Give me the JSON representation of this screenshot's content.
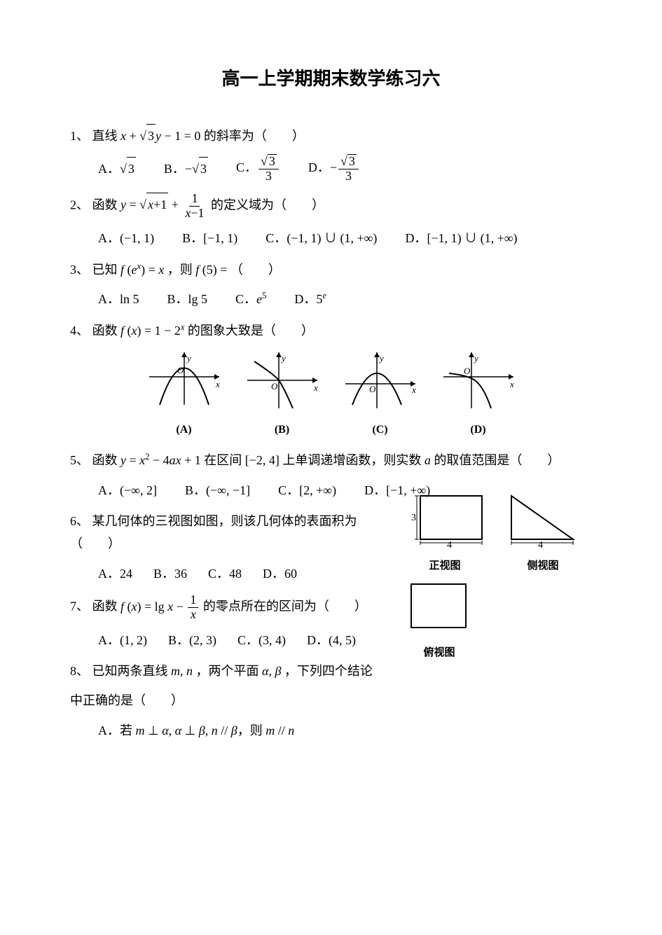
{
  "title": "高一上学期期末数学练习六",
  "colors": {
    "text": "#000000",
    "bg": "#ffffff",
    "line": "#000000"
  },
  "fonts": {
    "body": "SimSun, 宋体, serif",
    "math": "Times New Roman, serif",
    "size_body": 18,
    "size_title": 26
  },
  "q1": {
    "num": "1、",
    "text_prefix": "直线",
    "expr_html": "<span class='math-i'>x</span> + <span class='sqrt'><span class='sqrt-arg'>3</span></span><span class='math-i'>y</span> − 1 = 0",
    "text_suffix": " 的斜率为（　　）",
    "A": "<span class='sqrt'><span class='sqrt-arg'>3</span></span>",
    "B": "−<span class='sqrt'><span class='sqrt-arg'>3</span></span>",
    "C": "<span class='frac'><span class='num'><span class='sqrt'><span class='sqrt-arg'>3</span></span></span><span class='den'>3</span></span>",
    "D": "−<span class='frac'><span class='num'><span class='sqrt'><span class='sqrt-arg'>3</span></span></span><span class='den'>3</span></span>"
  },
  "q2": {
    "num": "2、",
    "text_prefix": "函数 ",
    "expr_html": "<span class='math-i'>y</span> = <span class='sqrt'><span class='sqrt-arg'><span class='math-i'>x</span>+1</span></span> + <span class='frac'><span class='num'>1</span><span class='den'><span class='math-i'>x</span>−1</span></span>",
    "text_suffix": " 的定义域为（　　）",
    "A": "(−1, 1)",
    "B": "[−1, 1)",
    "C": "(−1, 1) ∪ (1, +∞)",
    "D": "[−1, 1) ∪ (1, +∞)"
  },
  "q3": {
    "num": "3、",
    "text_prefix": "已知 ",
    "expr_html": "<span class='math-i'>f</span> (<span class='math-i'>e</span><sup><span class='math-i'>x</span></sup>) = <span class='math-i'>x</span>",
    "text_mid": "，则 ",
    "expr2_html": "<span class='math-i'>f</span> (5) =",
    "text_suffix": "（　　）",
    "A": "ln 5",
    "B": "lg 5",
    "C": "<span class='math-i'>e</span><sup>5</sup>",
    "D": "5<sup><span class='math-i'>e</span></sup>"
  },
  "q4": {
    "num": "4、",
    "text_prefix": "函数 ",
    "expr_html": "<span class='math-i'>f</span> (<span class='math-i'>x</span>) = 1 − 2<sup><span class='math-i'>x</span></sup>",
    "text_suffix": " 的图象大致是（　　）",
    "graph_size": {
      "w": 120,
      "h": 90
    },
    "labels": [
      "(A)",
      "(B)",
      "(C)",
      "(D)"
    ],
    "axis_labels": {
      "x": "x",
      "y": "y",
      "o": "O"
    },
    "curves": {
      "A": "parabola_down_through_origin",
      "B": "decreasing_through_origin",
      "C": "parabola_down_max_above",
      "D": "concave_down_decreasing"
    }
  },
  "q5": {
    "num": "5、",
    "text_prefix": "函数 ",
    "expr_html": "<span class='math-i'>y</span> = <span class='math-i'>x</span><sup>2</sup> − 4<span class='math-i'>ax</span> + 1",
    "text_mid": " 在区间 ",
    "interval": "[−2, 4]",
    "text_suffix": " 上单调递增函数，则实数 <span class='math-i'>a</span> 的取值范围是（　　）",
    "A": "(−∞, 2]",
    "B": "(−∞, −1]",
    "C": "[2, +∞)",
    "D": "[−1, +∞)"
  },
  "q6": {
    "num": "6、",
    "text": "某几何体的三视图如图，则该几何体的表面积为（　　）",
    "A": "24",
    "B": "36",
    "C": "48",
    "D": "60",
    "views": {
      "front": {
        "w": 4,
        "h": 3,
        "label": "正视图"
      },
      "side": {
        "w": 4,
        "h": 3,
        "label": "侧视图",
        "shape": "right_triangle"
      },
      "top": {
        "label": "俯视图",
        "shape": "square"
      }
    }
  },
  "q7": {
    "num": "7、",
    "text_prefix": "函数 ",
    "expr_html": "<span class='math-i'>f</span> (<span class='math-i'>x</span>) = lg <span class='math-i'>x</span> − <span class='frac'><span class='num'>1</span><span class='den'><span class='math-i'>x</span></span></span>",
    "text_suffix": " 的零点所在的区间为（　　）",
    "A": "(1, 2)",
    "B": "(2, 3)",
    "C": "(3, 4)",
    "D": "(4, 5)"
  },
  "q8": {
    "num": "8、",
    "text_prefix": "已知两条直线 ",
    "lines": "<span class='math-i'>m</span>, <span class='math-i'>n</span>",
    "text_mid": "，两个平面 ",
    "planes": "<span class='math-i'>α</span>, <span class='math-i'>β</span>",
    "text_suffix": "，下列四个结论",
    "text_line2": "中正确的是（　　）",
    "A_prefix": "若 ",
    "A_expr": "<span class='math-i'>m</span> ⊥ <span class='math-i'>α</span>, <span class='math-i'>α</span> ⊥ <span class='math-i'>β</span>, <span class='math-i'>n</span> // <span class='math-i'>β</span>",
    "A_mid": "，则 ",
    "A_concl": "<span class='math-i'>m</span> // <span class='math-i'>n</span>"
  }
}
